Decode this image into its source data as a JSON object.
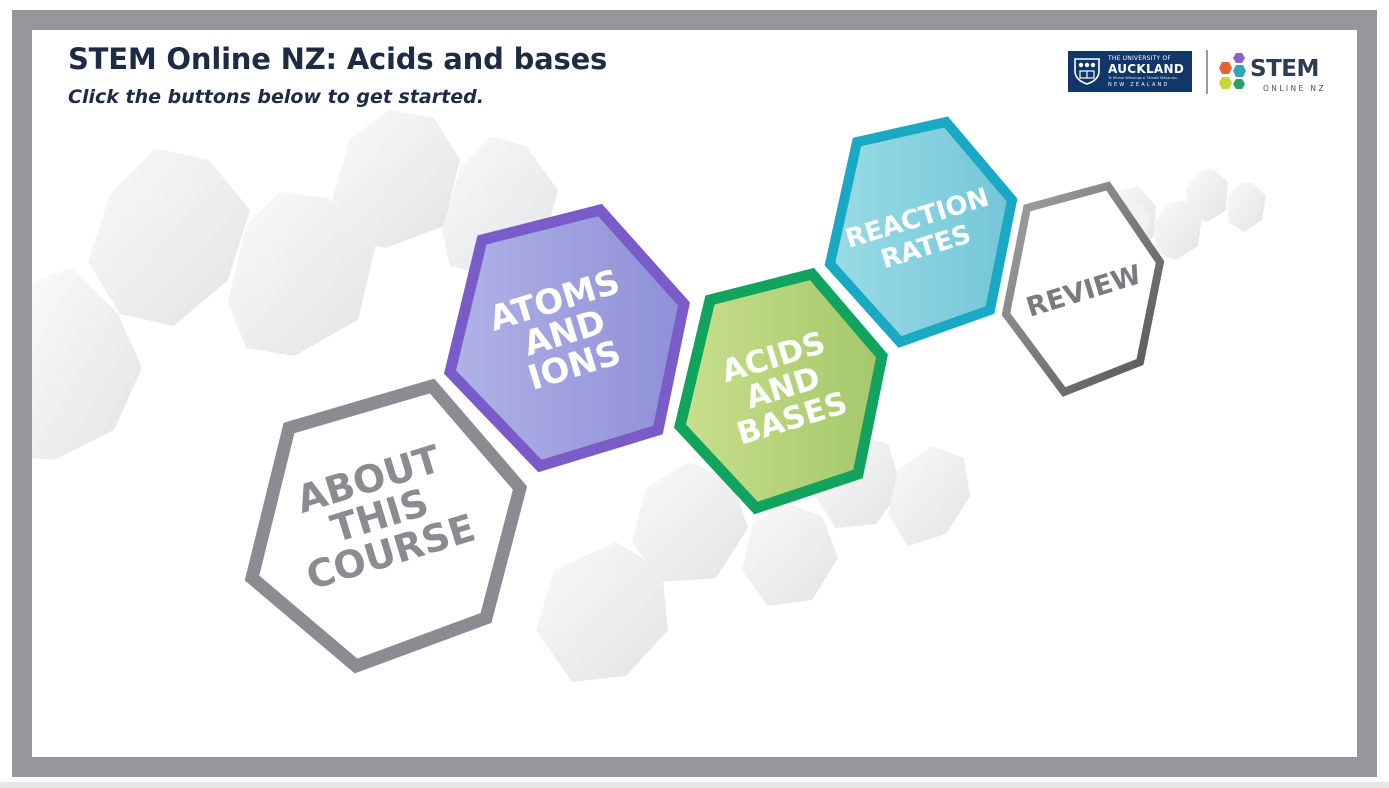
{
  "header": {
    "title": "STEM Online NZ: Acids and bases",
    "subtitle": "Click the buttons below to get started."
  },
  "logos": {
    "university": {
      "line1": "THE UNIVERSITY OF",
      "line2": "AUCKLAND",
      "line3": "Te Whare Wānanga o Tāmaki Makaurau",
      "line4": "NEW ZEALAND"
    },
    "stem": {
      "word": "STEM",
      "sub": "ONLINE NZ"
    }
  },
  "menu": {
    "about": {
      "line1": "ABOUT",
      "line2": "THIS",
      "line3": "COURSE"
    },
    "atoms": {
      "line1": "ATOMS",
      "line2": "AND",
      "line3": "IONS"
    },
    "acids": {
      "line1": "ACIDS",
      "line2": "AND",
      "line3": "BASES"
    },
    "reaction": {
      "line1": "REACTION",
      "line2": "RATES"
    },
    "review": {
      "line1": "REVIEW"
    }
  },
  "colors": {
    "title": "#1e2b45",
    "frame": "#95979c",
    "about": "#8a8c92",
    "atoms_stroke": "#7a5cc9",
    "acids_stroke": "#12a45f",
    "reaction_stroke": "#1aa9c4",
    "review_stroke": "#6b6b6b"
  }
}
